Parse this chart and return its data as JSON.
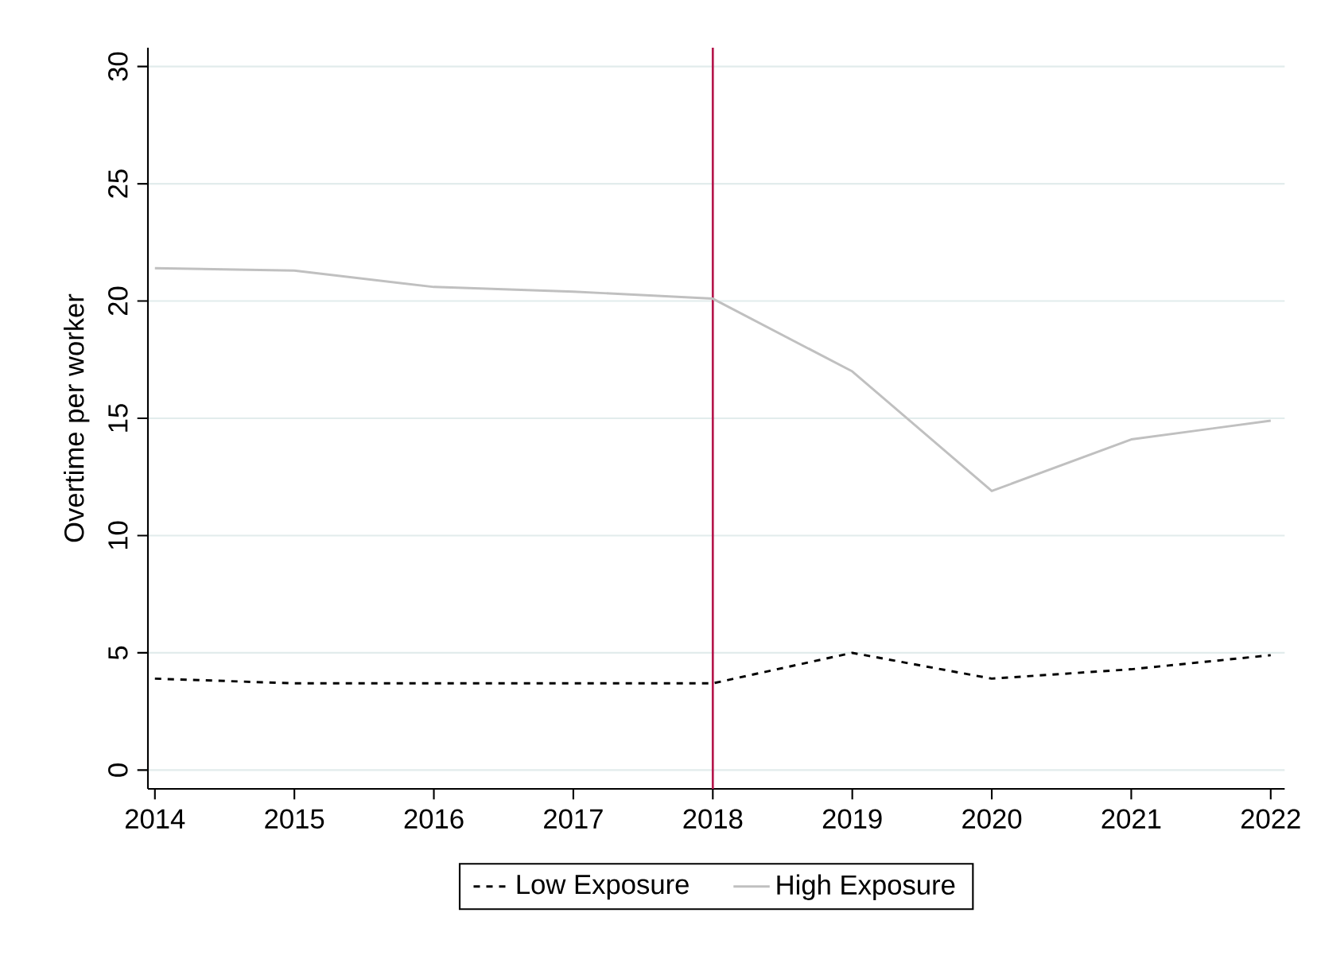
{
  "chart_data": {
    "type": "line",
    "ylabel": "Overtime per worker",
    "x": [
      2014,
      2015,
      2016,
      2017,
      2018,
      2019,
      2020,
      2021,
      2022
    ],
    "series": [
      {
        "name": "Low Exposure",
        "color": "#000000",
        "line_style": "dashed",
        "values": [
          3.9,
          3.7,
          3.7,
          3.7,
          3.7,
          5.0,
          3.9,
          4.3,
          4.9
        ]
      },
      {
        "name": "High Exposure",
        "color": "#c0c0c0",
        "line_style": "solid",
        "values": [
          21.4,
          21.3,
          20.6,
          20.4,
          20.1,
          17.0,
          11.9,
          14.1,
          14.9
        ]
      }
    ],
    "xlim": [
      2013.95,
      2022.1
    ],
    "xticks": [
      2014,
      2015,
      2016,
      2017,
      2018,
      2019,
      2020,
      2021,
      2022
    ],
    "ylim": [
      -0.8,
      30.8
    ],
    "yticks": [
      0,
      5,
      10,
      15,
      20,
      25,
      30
    ],
    "ref_lines": [
      {
        "axis": "x",
        "value": 2018,
        "color": "#b5164b"
      }
    ],
    "grid": "y",
    "legend": "bottom",
    "marker": "none"
  }
}
